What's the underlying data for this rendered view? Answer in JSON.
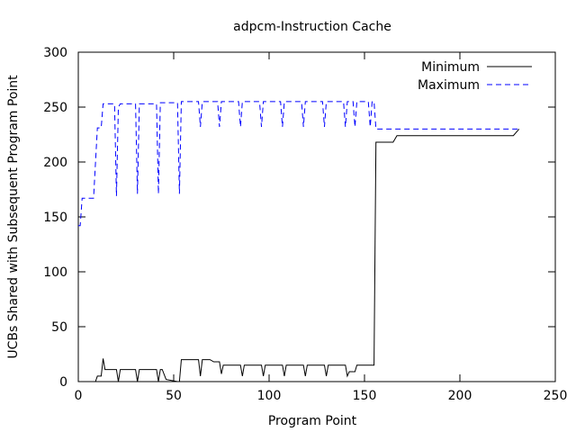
{
  "chart_data": {
    "type": "line",
    "title": "adpcm-Instruction Cache",
    "xlabel": "Program Point",
    "ylabel": "UCBs Shared with Subsequent Program Point",
    "xlim": [
      0,
      250
    ],
    "ylim": [
      0,
      300
    ],
    "xticks": [
      0,
      50,
      100,
      150,
      200,
      250
    ],
    "yticks": [
      0,
      50,
      100,
      150,
      200,
      250,
      300
    ],
    "grid": false,
    "legend_position": "top-right",
    "series": [
      {
        "name": "Minimum",
        "color": "#000000",
        "dash": "solid",
        "points": [
          [
            0,
            0
          ],
          [
            9,
            0
          ],
          [
            10,
            5
          ],
          [
            12,
            5
          ],
          [
            13,
            21
          ],
          [
            14,
            11
          ],
          [
            20,
            11
          ],
          [
            21,
            0
          ],
          [
            22,
            11
          ],
          [
            30,
            11
          ],
          [
            31,
            0
          ],
          [
            32,
            11
          ],
          [
            41,
            11
          ],
          [
            42,
            0
          ],
          [
            43,
            11
          ],
          [
            44,
            11
          ],
          [
            46,
            2
          ],
          [
            52,
            0
          ],
          [
            53,
            0
          ],
          [
            54,
            20
          ],
          [
            63,
            20
          ],
          [
            64,
            5
          ],
          [
            65,
            20
          ],
          [
            69,
            20
          ],
          [
            71,
            18
          ],
          [
            74,
            18
          ],
          [
            75,
            7
          ],
          [
            76,
            15
          ],
          [
            85,
            15
          ],
          [
            86,
            5
          ],
          [
            87,
            15
          ],
          [
            96,
            15
          ],
          [
            97,
            5
          ],
          [
            98,
            15
          ],
          [
            107,
            15
          ],
          [
            108,
            5
          ],
          [
            109,
            15
          ],
          [
            118,
            15
          ],
          [
            119,
            5
          ],
          [
            120,
            15
          ],
          [
            129,
            15
          ],
          [
            130,
            5
          ],
          [
            131,
            15
          ],
          [
            140,
            15
          ],
          [
            141,
            5
          ],
          [
            142,
            9
          ],
          [
            145,
            9
          ],
          [
            146,
            15
          ],
          [
            155,
            15
          ],
          [
            156,
            218
          ],
          [
            165,
            218
          ],
          [
            167,
            224
          ],
          [
            228,
            224
          ],
          [
            231,
            230
          ]
        ]
      },
      {
        "name": "Maximum",
        "color": "#0000ff",
        "dash": "dashed",
        "points": [
          [
            0,
            142
          ],
          [
            1,
            142
          ],
          [
            2,
            167
          ],
          [
            3,
            167
          ],
          [
            8,
            167
          ],
          [
            10,
            231
          ],
          [
            12,
            231
          ],
          [
            13,
            253
          ],
          [
            19,
            253
          ],
          [
            20,
            169
          ],
          [
            21,
            250
          ],
          [
            22,
            253
          ],
          [
            30,
            253
          ],
          [
            31,
            171
          ],
          [
            32,
            253
          ],
          [
            41,
            253
          ],
          [
            42,
            171
          ],
          [
            43,
            254
          ],
          [
            52,
            254
          ],
          [
            53,
            171
          ],
          [
            54,
            255
          ],
          [
            63,
            255
          ],
          [
            64,
            232
          ],
          [
            65,
            255
          ],
          [
            73,
            255
          ],
          [
            74,
            232
          ],
          [
            75,
            255
          ],
          [
            84,
            255
          ],
          [
            85,
            232
          ],
          [
            86,
            255
          ],
          [
            95,
            255
          ],
          [
            96,
            232
          ],
          [
            97,
            255
          ],
          [
            106,
            255
          ],
          [
            107,
            232
          ],
          [
            108,
            255
          ],
          [
            117,
            255
          ],
          [
            118,
            232
          ],
          [
            119,
            255
          ],
          [
            128,
            255
          ],
          [
            129,
            232
          ],
          [
            130,
            255
          ],
          [
            139,
            255
          ],
          [
            140,
            232
          ],
          [
            141,
            255
          ],
          [
            144,
            255
          ],
          [
            145,
            232
          ],
          [
            146,
            255
          ],
          [
            152,
            255
          ],
          [
            153,
            232
          ],
          [
            154,
            255
          ],
          [
            155,
            255
          ],
          [
            156,
            230
          ],
          [
            228,
            230
          ],
          [
            231,
            230
          ]
        ]
      }
    ]
  }
}
